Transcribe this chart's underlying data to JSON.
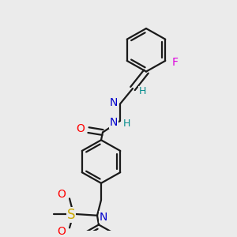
{
  "bg_color": "#ebebeb",
  "bond_color": "#1a1a1a",
  "bond_width": 1.6,
  "figsize": [
    3.0,
    3.0
  ],
  "dpi": 100,
  "colors": {
    "F": "#dd00dd",
    "N": "#0000cc",
    "O": "#ff0000",
    "S": "#ccaa00",
    "H": "#008b8b",
    "C": "#1a1a1a"
  }
}
